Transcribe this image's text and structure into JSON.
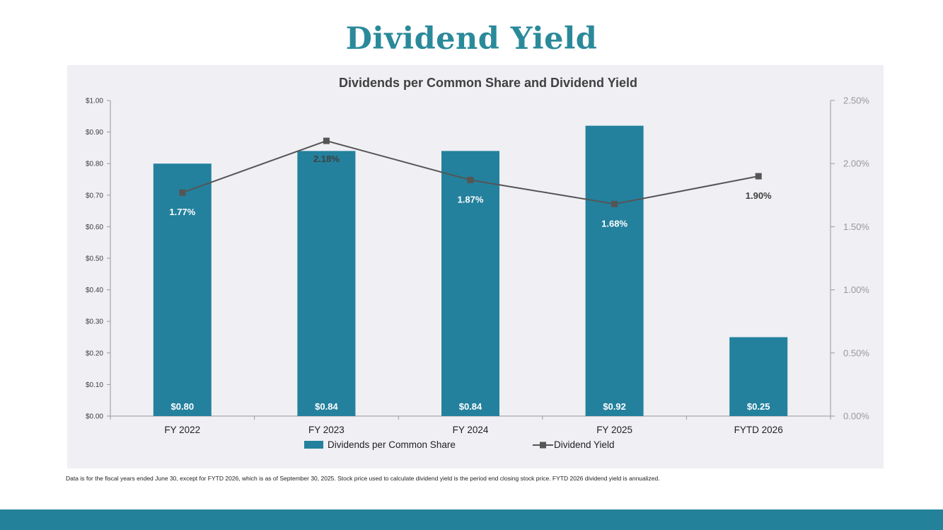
{
  "page": {
    "title": "Dividend Yield",
    "footnote": "Data is for the fiscal years ended June 30, except for FYTD 2026, which is as of September 30, 2025. Stock price used to calculate dividend yield is the period end closing stock price. FYTD 2026 dividend yield is annualized."
  },
  "colors": {
    "title": "#2a8a9a",
    "bar": "#23819d",
    "line": "#555555",
    "panel": "#efeff4",
    "footer": "#23819a"
  },
  "chart_data": {
    "type": "bar",
    "title": "Dividends per Common Share and Dividend Yield",
    "categories": [
      "FY 2022",
      "FY 2023",
      "FY 2024",
      "FY 2025",
      "FYTD 2026"
    ],
    "series": [
      {
        "name": "Dividends per Common Share",
        "type": "bar",
        "axis": "left",
        "values": [
          0.8,
          0.84,
          0.84,
          0.92,
          0.25
        ],
        "labels": [
          "$0.80",
          "$0.84",
          "$0.84",
          "$0.92",
          "$0.25"
        ]
      },
      {
        "name": "Dividend Yield",
        "type": "line",
        "axis": "right",
        "values": [
          1.77,
          2.18,
          1.87,
          1.68,
          1.9
        ],
        "labels": [
          "1.77%",
          "2.18%",
          "1.87%",
          "1.68%",
          "1.90%"
        ]
      }
    ],
    "y_left": {
      "min": 0,
      "max": 1.0,
      "ticks": [
        "$0.00",
        "$0.10",
        "$0.20",
        "$0.30",
        "$0.40",
        "$0.50",
        "$0.60",
        "$0.70",
        "$0.80",
        "$0.90",
        "$1.00"
      ]
    },
    "y_right": {
      "min": 0,
      "max": 2.5,
      "ticks": [
        "0.00%",
        "0.50%",
        "1.00%",
        "1.50%",
        "2.00%",
        "2.50%"
      ]
    },
    "legend": [
      "Dividends per Common Share",
      "Dividend Yield"
    ],
    "legend_position": "bottom"
  }
}
